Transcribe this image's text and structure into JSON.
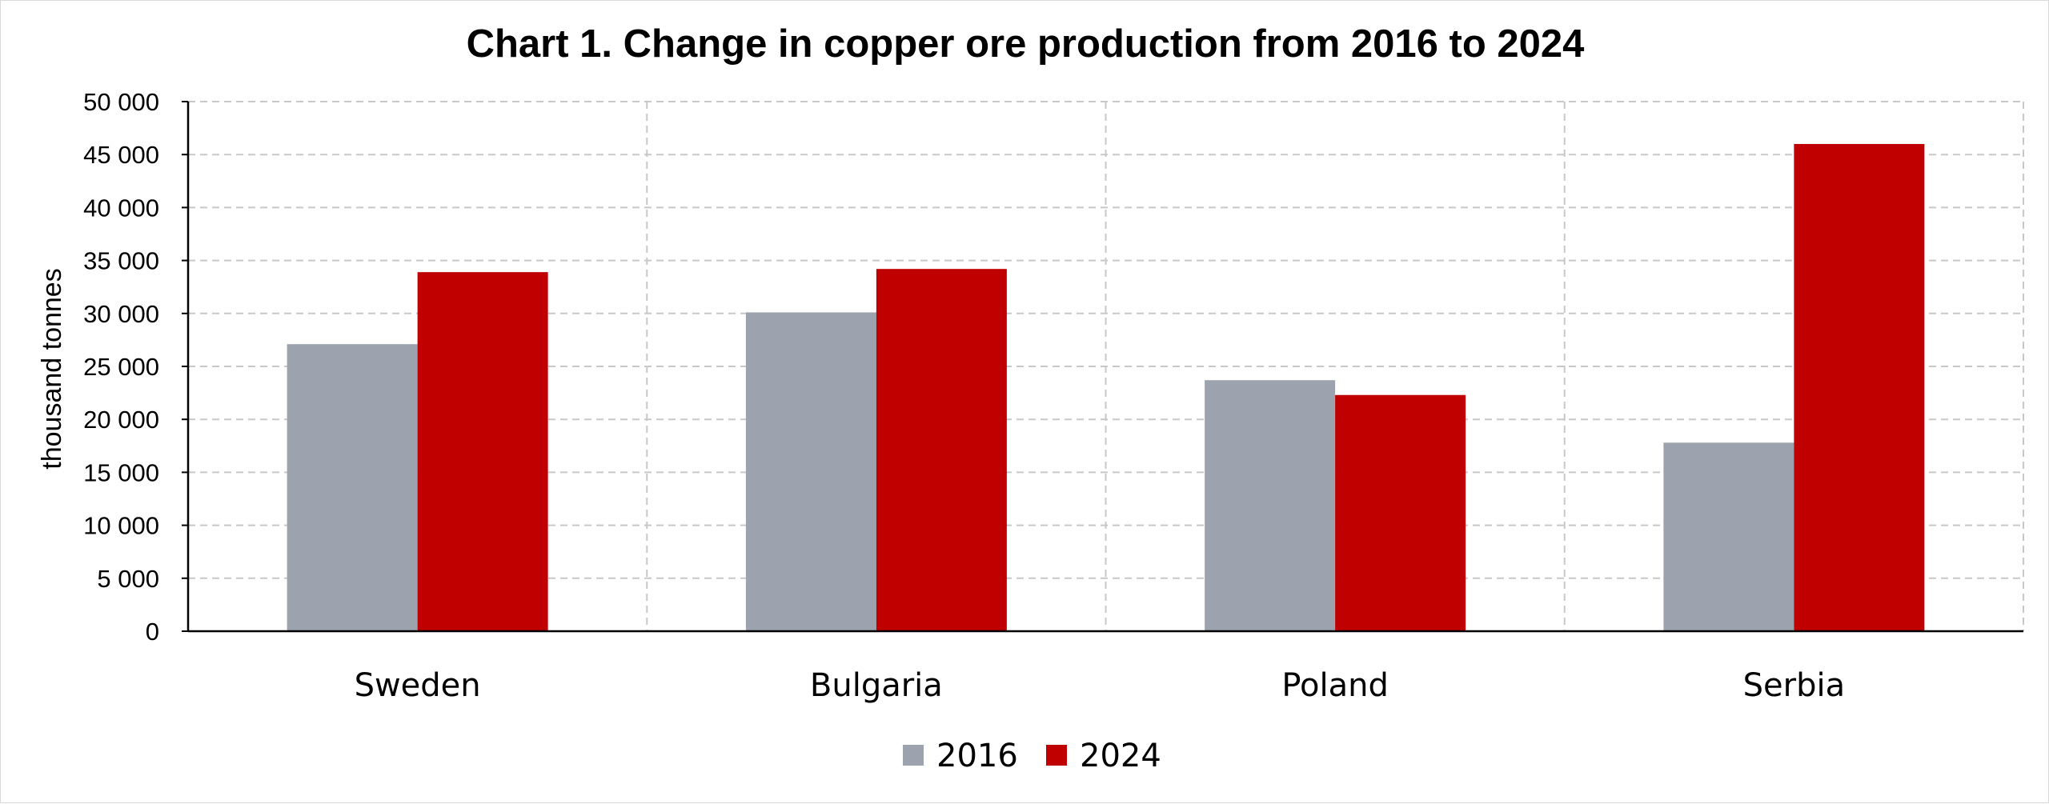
{
  "chart_data": {
    "type": "bar",
    "title": "Chart 1. Change in copper ore production from 2016 to 2024",
    "xlabel": "",
    "ylabel": "thousand tonnes",
    "ylim": [
      0,
      50000
    ],
    "yticks": [
      0,
      5000,
      10000,
      15000,
      20000,
      25000,
      30000,
      35000,
      40000,
      45000,
      50000
    ],
    "ytick_labels": [
      "0",
      "5 000",
      "10 000",
      "15 000",
      "20 000",
      "25 000",
      "30 000",
      "35 000",
      "40 000",
      "45 000",
      "50 000"
    ],
    "categories": [
      "Sweden",
      "Bulgaria",
      "Poland",
      "Serbia"
    ],
    "series": [
      {
        "name": "2016",
        "color": "#9ca3af",
        "values": [
          27100,
          30100,
          23700,
          17800
        ]
      },
      {
        "name": "2024",
        "color": "#c00000",
        "values": [
          33900,
          34200,
          22300,
          46000
        ]
      }
    ],
    "grid": true,
    "legend_position": "bottom"
  }
}
